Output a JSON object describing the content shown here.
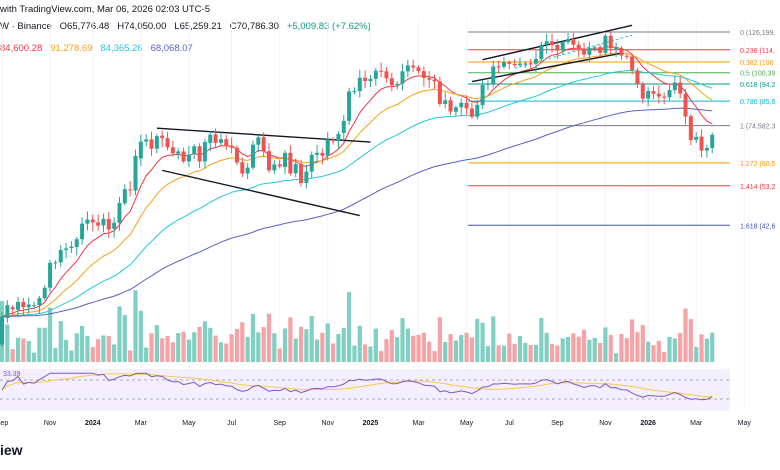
{
  "header": {
    "line1": "with TradingView.com, Mar 06, 2026 02:03 UTC-5",
    "line2": {
      "prefix": "W · Binance",
      "open": "O65,776.48",
      "high": "H74,050.00",
      "low": "L65,259.21",
      "close": "C70,786.30",
      "change": "+5,009.83 (+7.62%)"
    },
    "ema_values": [
      "84,600.28",
      "91,278.69",
      "84,365.26",
      "68,068.07"
    ]
  },
  "rsi_label": "33.39",
  "footer_text": "iew",
  "colors": {
    "up": "#26a69a",
    "down": "#ef5350",
    "ema_fast": "#f23645",
    "ema_mid": "#f7a21b",
    "ema_slow": "#26c6da",
    "ema_long": "#5b5fc7"
  },
  "chart_data": {
    "type": "candlestick",
    "title": "BTC/USDT weekly · Binance",
    "x_ticks": [
      "Sep",
      "Nov",
      "2024",
      "Mar",
      "May",
      "Jul",
      "Sep",
      "Nov",
      "2025",
      "Mar",
      "May",
      "Jul",
      "Sep",
      "Nov",
      "2026",
      "Mar",
      "May"
    ],
    "x_tick_weeks": [
      0,
      9,
      17,
      26,
      35,
      43,
      52,
      61,
      69,
      78,
      87,
      95,
      104,
      113,
      121,
      130,
      139
    ],
    "ylim": [
      28000,
      135000
    ],
    "candles": [
      [
        21800,
        25500
      ],
      [
        25300,
        27200
      ],
      [
        26900,
        26600
      ],
      [
        26500,
        27700
      ],
      [
        27700,
        26900
      ],
      [
        26900,
        27300
      ],
      [
        27200,
        27200
      ],
      [
        27200,
        28300
      ],
      [
        28300,
        30000
      ],
      [
        30000,
        34500
      ],
      [
        34500,
        34600
      ],
      [
        34600,
        37100
      ],
      [
        37100,
        37400
      ],
      [
        37500,
        37800
      ],
      [
        37700,
        39400
      ],
      [
        39400,
        43000
      ],
      [
        43000,
        44000
      ],
      [
        44000,
        43300
      ],
      [
        43300,
        42500
      ],
      [
        42600,
        44200
      ],
      [
        44100,
        41600
      ],
      [
        41800,
        43200
      ],
      [
        43200,
        48300
      ],
      [
        48200,
        52200
      ],
      [
        52100,
        51800
      ],
      [
        51800,
        62900
      ],
      [
        62000,
        68200
      ],
      [
        68200,
        69000
      ],
      [
        69000,
        65500
      ],
      [
        65500,
        70300
      ],
      [
        70500,
        69500
      ],
      [
        69500,
        66000
      ],
      [
        66000,
        63800
      ],
      [
        63700,
        64500
      ],
      [
        64500,
        61000
      ],
      [
        61000,
        63400
      ],
      [
        63500,
        66400
      ],
      [
        66400,
        61000
      ],
      [
        61000,
        68000
      ],
      [
        67700,
        70900
      ],
      [
        71000,
        67700
      ],
      [
        67700,
        69100
      ],
      [
        69100,
        66700
      ],
      [
        66700,
        65900
      ],
      [
        65900,
        60600
      ],
      [
        60700,
        57000
      ],
      [
        57000,
        58900
      ],
      [
        58900,
        67000
      ],
      [
        67000,
        69800
      ],
      [
        69900,
        64600
      ],
      [
        64600,
        58000
      ],
      [
        58000,
        60000
      ],
      [
        60000,
        59300
      ],
      [
        59100,
        64000
      ],
      [
        64000,
        57000
      ],
      [
        57100,
        60100
      ],
      [
        60100,
        54000
      ],
      [
        54000,
        57600
      ],
      [
        57600,
        63300
      ],
      [
        63300,
        64000
      ],
      [
        64000,
        63000
      ],
      [
        63000,
        69000
      ],
      [
        69000,
        68300
      ],
      [
        68300,
        71200
      ],
      [
        71600,
        76600
      ],
      [
        76600,
        90400
      ],
      [
        90400,
        90500
      ],
      [
        90500,
        97600
      ],
      [
        97600,
        95800
      ],
      [
        95800,
        97000
      ],
      [
        97000,
        101500
      ],
      [
        101500,
        101300
      ],
      [
        101200,
        97300
      ],
      [
        97300,
        93500
      ],
      [
        93800,
        94300
      ],
      [
        94500,
        101200
      ],
      [
        101200,
        104600
      ],
      [
        104500,
        103400
      ],
      [
        103500,
        101300
      ],
      [
        101300,
        97500
      ],
      [
        97500,
        96600
      ],
      [
        96600,
        95700
      ],
      [
        95600,
        84200
      ],
      [
        84200,
        86000
      ],
      [
        86000,
        80700
      ],
      [
        80600,
        82600
      ],
      [
        82700,
        84800
      ],
      [
        84800,
        82200
      ],
      [
        82100,
        78400
      ],
      [
        78400,
        83800
      ],
      [
        83700,
        93700
      ],
      [
        93800,
        94300
      ],
      [
        94200,
        104000
      ],
      [
        104000,
        103700
      ],
      [
        103800,
        106500
      ],
      [
        106500,
        105500
      ],
      [
        105500,
        104700
      ],
      [
        104800,
        105700
      ],
      [
        105600,
        105800
      ],
      [
        105800,
        105600
      ],
      [
        105600,
        108400
      ],
      [
        108400,
        117500
      ],
      [
        117500,
        119800
      ],
      [
        119800,
        117300
      ],
      [
        117300,
        113700
      ],
      [
        113700,
        119300
      ],
      [
        119300,
        121300
      ],
      [
        121300,
        117500
      ],
      [
        117500,
        115000
      ],
      [
        115000,
        111200
      ],
      [
        111000,
        115300
      ],
      [
        115300,
        115800
      ],
      [
        115900,
        112300
      ],
      [
        112300,
        123500
      ],
      [
        123500,
        115200
      ],
      [
        115100,
        115300
      ],
      [
        115200,
        110600
      ],
      [
        110400,
        110000
      ],
      [
        110000,
        101800
      ],
      [
        101700,
        94200
      ],
      [
        94100,
        86800
      ],
      [
        86800,
        90600
      ],
      [
        90500,
        89200
      ],
      [
        89300,
        87800
      ],
      [
        87800,
        87500
      ],
      [
        87500,
        91100
      ],
      [
        91000,
        95000
      ],
      [
        95000,
        89300
      ],
      [
        89200,
        78500
      ],
      [
        78600,
        68800
      ],
      [
        68900,
        70000
      ],
      [
        70100,
        64800
      ],
      [
        64800,
        65800
      ],
      [
        65776,
        70786
      ]
    ],
    "indicators": {
      "ema_fast_last": 84600.28,
      "ema_mid_last": 91278.69,
      "ema_slow_last": 84365.26,
      "ema_long_last": 68068.07
    },
    "fib_levels": [
      {
        "ratio": "0",
        "label": "0 (126,199.",
        "price": 126199,
        "color": "#787b86"
      },
      {
        "ratio": "0.236",
        "label": "0.236 (114,",
        "price": 114200,
        "color": "#f23645"
      },
      {
        "ratio": "0.382",
        "label": "0.382 (106",
        "price": 106600,
        "color": "#ff9800"
      },
      {
        "ratio": "0.5",
        "label": "0.5 (100,39",
        "price": 100390,
        "color": "#4caf50"
      },
      {
        "ratio": "0.618",
        "label": "0.618 (94,2",
        "price": 94200,
        "color": "#089981"
      },
      {
        "ratio": "0.786",
        "label": "0.786 (85,6",
        "price": 85600,
        "color": "#00bcd4"
      },
      {
        "ratio": "1",
        "label": "1 (74,582.3",
        "price": 74582,
        "color": "#787b86"
      },
      {
        "ratio": "1.272",
        "label": "1.272 (60,5",
        "price": 60500,
        "color": "#ff9800"
      },
      {
        "ratio": "1.414",
        "label": "1.414 (53,2",
        "price": 53200,
        "color": "#f23645"
      },
      {
        "ratio": "1.618",
        "label": "1.618 (42,6",
        "price": 42600,
        "color": "#3f51b5"
      }
    ],
    "rsi_last": 33.39
  }
}
